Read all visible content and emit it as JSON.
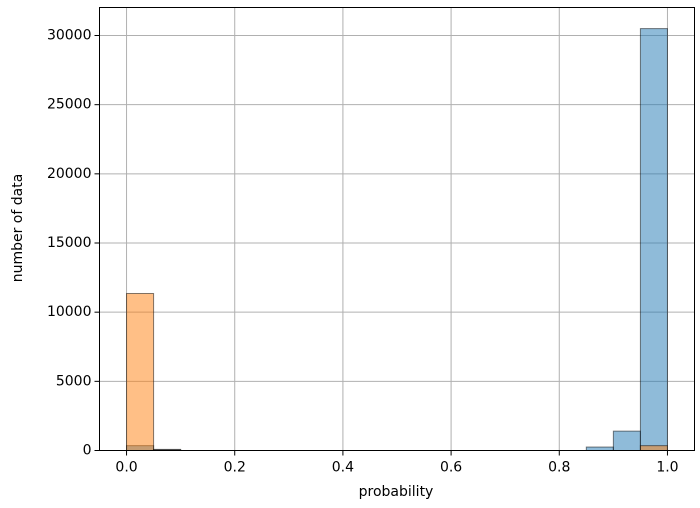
{
  "chart_data": {
    "type": "histogram",
    "x_label": "probability",
    "y_label": "number of data",
    "bins": [
      0,
      0.05,
      0.1,
      0.15,
      0.2,
      0.25,
      0.3,
      0.35,
      0.4,
      0.45,
      0.5,
      0.55,
      0.6,
      0.65,
      0.7,
      0.75,
      0.8,
      0.85,
      0.9,
      0.95,
      1.0
    ],
    "series": [
      {
        "color": "#1f77b4",
        "values": [
          350,
          80,
          0,
          0,
          0,
          0,
          0,
          0,
          0,
          0,
          0,
          0,
          0,
          0,
          0,
          0,
          0,
          250,
          1400,
          30500
        ]
      },
      {
        "color": "#ff7f0e",
        "values": [
          11350,
          50,
          0,
          0,
          0,
          0,
          0,
          0,
          0,
          0,
          0,
          0,
          0,
          0,
          0,
          0,
          0,
          0,
          0,
          350
        ]
      }
    ],
    "opacity": 0.5,
    "xlim": [
      -0.05,
      1.05
    ],
    "ylim": [
      0,
      32025
    ],
    "xticks": [
      {
        "value": 0,
        "label": "0.0"
      },
      {
        "value": 0.2,
        "label": "0.2"
      },
      {
        "value": 0.4,
        "label": "0.4"
      },
      {
        "value": 0.6,
        "label": "0.6"
      },
      {
        "value": 0.8,
        "label": "0.8"
      },
      {
        "value": 1.0,
        "label": "1.0"
      }
    ],
    "yticks": [
      0,
      5000,
      10000,
      15000,
      20000,
      25000,
      30000
    ],
    "grid": true
  }
}
